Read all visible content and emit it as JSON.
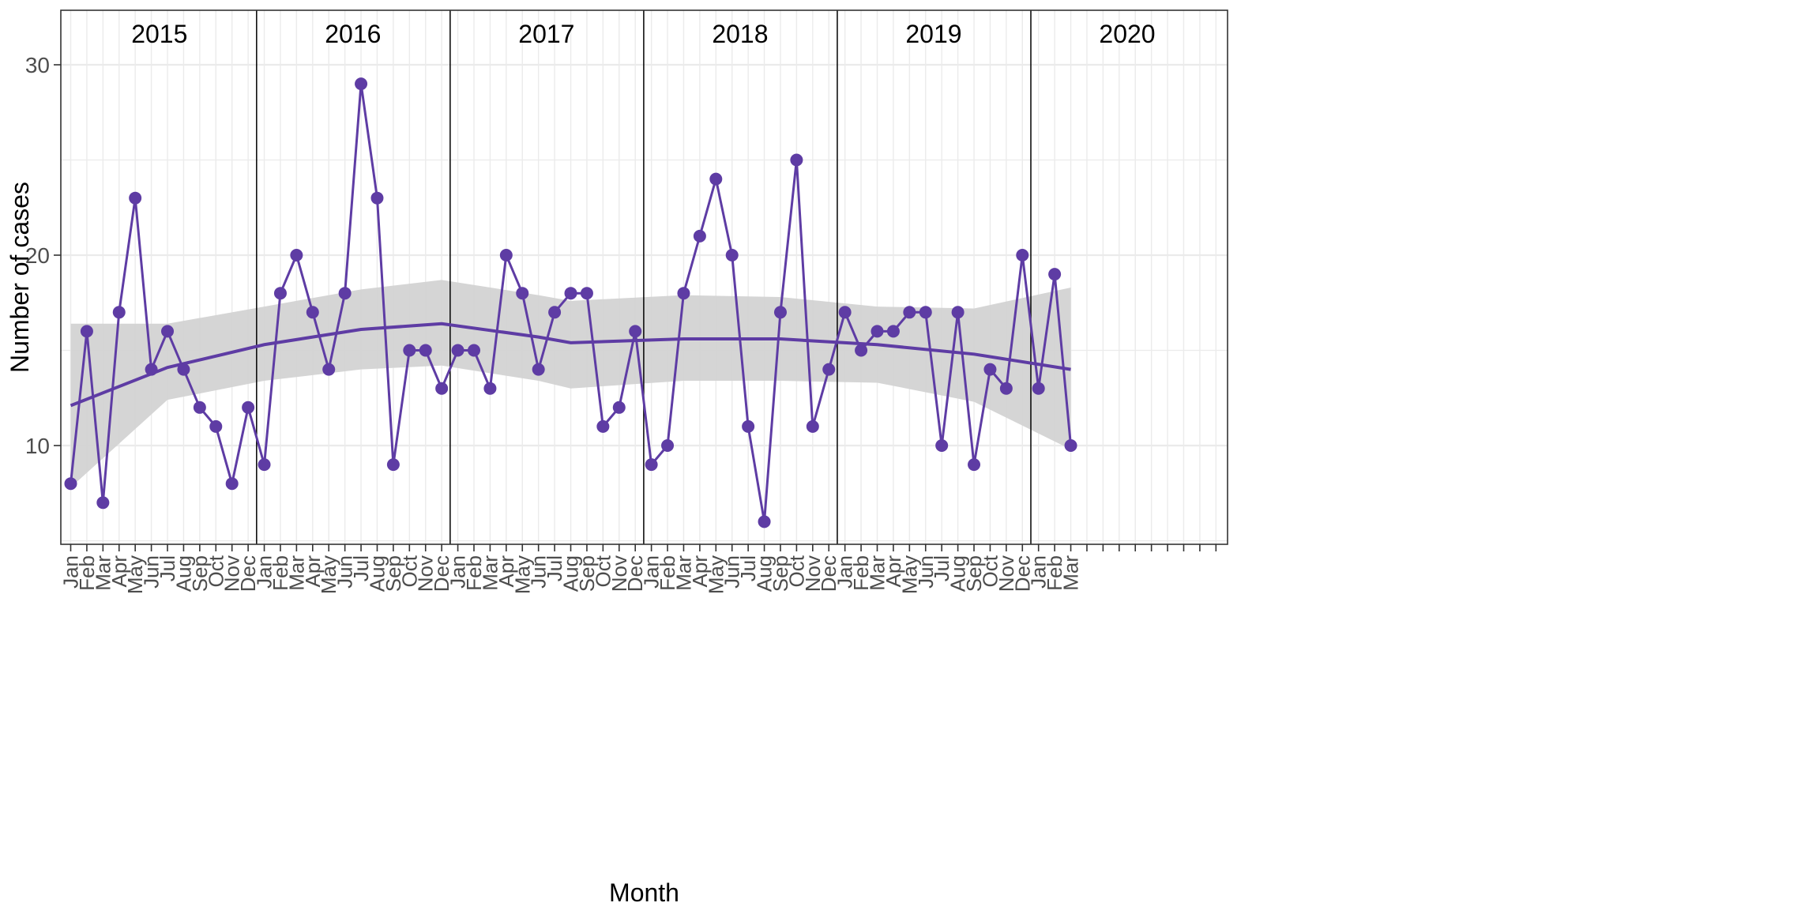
{
  "chart_data": {
    "type": "line",
    "title": "",
    "xlabel": "Month",
    "ylabel": "Number of cases",
    "ylim": [
      5,
      32.9
    ],
    "y_ticks": [
      10,
      20,
      30
    ],
    "grid": true,
    "facets": [
      "2015",
      "2016",
      "2017",
      "2018",
      "2019",
      "2020"
    ],
    "months": [
      "Jan",
      "Feb",
      "Mar",
      "Apr",
      "May",
      "Jun",
      "Jul",
      "Aug",
      "Sep",
      "Oct",
      "Nov",
      "Dec"
    ],
    "series": [
      {
        "kind": "observed",
        "x": [
          "2015-01",
          "2015-02",
          "2015-03",
          "2015-04",
          "2015-05",
          "2015-06",
          "2015-07",
          "2015-08",
          "2015-09",
          "2015-10",
          "2015-11",
          "2015-12",
          "2016-01",
          "2016-02",
          "2016-03",
          "2016-04",
          "2016-05",
          "2016-06",
          "2016-07",
          "2016-08",
          "2016-09",
          "2016-10",
          "2016-11",
          "2016-12",
          "2017-01",
          "2017-02",
          "2017-03",
          "2017-04",
          "2017-05",
          "2017-06",
          "2017-07",
          "2017-08",
          "2017-09",
          "2017-10",
          "2017-11",
          "2017-12",
          "2018-01",
          "2018-02",
          "2018-03",
          "2018-04",
          "2018-05",
          "2018-06",
          "2018-07",
          "2018-08",
          "2018-09",
          "2018-10",
          "2018-11",
          "2018-12",
          "2019-01",
          "2019-02",
          "2019-03",
          "2019-04",
          "2019-05",
          "2019-06",
          "2019-07",
          "2019-08",
          "2019-09",
          "2019-10",
          "2019-11",
          "2019-12",
          "2020-01",
          "2020-02",
          "2020-03"
        ],
        "values": [
          8,
          16,
          7,
          17,
          23,
          14,
          16,
          14,
          12,
          11,
          8,
          12,
          9,
          18,
          20,
          17,
          14,
          18,
          29,
          23,
          9,
          15,
          15,
          13,
          15,
          15,
          13,
          20,
          18,
          14,
          17,
          18,
          18,
          11,
          12,
          16,
          9,
          10,
          18,
          21,
          24,
          20,
          11,
          6,
          17,
          25,
          11,
          14,
          17,
          15,
          16,
          16,
          17,
          17,
          10,
          17,
          9,
          14,
          13,
          20,
          13,
          19,
          10
        ]
      },
      {
        "kind": "smooth",
        "x": [
          "2015-01",
          "2015-07",
          "2016-01",
          "2016-07",
          "2016-12",
          "2017-06",
          "2017-08",
          "2018-03",
          "2018-09",
          "2019-03",
          "2019-09",
          "2020-03"
        ],
        "values": [
          12.1,
          14.1,
          15.3,
          16.1,
          16.4,
          15.7,
          15.4,
          15.6,
          15.6,
          15.3,
          14.8,
          14.0
        ],
        "ci_lower": [
          7.8,
          12.4,
          13.4,
          14.0,
          14.2,
          13.4,
          13.0,
          13.4,
          13.4,
          13.3,
          12.3,
          9.8
        ],
        "ci_upper": [
          16.4,
          16.4,
          17.3,
          18.2,
          18.7,
          17.9,
          17.6,
          17.9,
          17.8,
          17.3,
          17.2,
          18.3
        ]
      }
    ],
    "colors": {
      "line": "#5e3ca4",
      "ribbon": "#d3d3d3",
      "panel_grid": "#ebebeb",
      "facet_divider": "#000000",
      "axis_text": "#4d4d4d"
    }
  }
}
